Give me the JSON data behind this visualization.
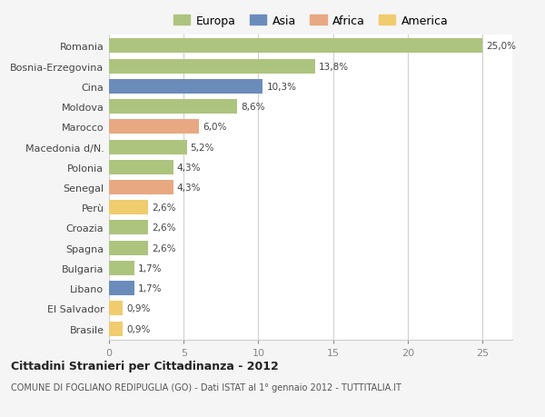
{
  "categories": [
    "Romania",
    "Bosnia-Erzegovina",
    "Cina",
    "Moldova",
    "Marocco",
    "Macedonia d/N.",
    "Polonia",
    "Senegal",
    "Perù",
    "Croazia",
    "Spagna",
    "Bulgaria",
    "Libano",
    "El Salvador",
    "Brasile"
  ],
  "values": [
    25.0,
    13.8,
    10.3,
    8.6,
    6.0,
    5.2,
    4.3,
    4.3,
    2.6,
    2.6,
    2.6,
    1.7,
    1.7,
    0.9,
    0.9
  ],
  "labels": [
    "25,0%",
    "13,8%",
    "10,3%",
    "8,6%",
    "6,0%",
    "5,2%",
    "4,3%",
    "4,3%",
    "2,6%",
    "2,6%",
    "2,6%",
    "1,7%",
    "1,7%",
    "0,9%",
    "0,9%"
  ],
  "colors": [
    "#adc47e",
    "#adc47e",
    "#6b8cba",
    "#adc47e",
    "#e8a882",
    "#adc47e",
    "#adc47e",
    "#e8a882",
    "#f0cc6e",
    "#adc47e",
    "#adc47e",
    "#adc47e",
    "#6b8cba",
    "#f0cc6e",
    "#f0cc6e"
  ],
  "legend": {
    "Europa": "#adc47e",
    "Asia": "#6b8cba",
    "Africa": "#e8a882",
    "America": "#f0cc6e"
  },
  "title_bold": "Cittadini Stranieri per Cittadinanza - 2012",
  "subtitle": "COMUNE DI FOGLIANO REDIPUGLIA (GO) - Dati ISTAT al 1° gennaio 2012 - TUTTITALIA.IT",
  "xlim": [
    0,
    27
  ],
  "xticks": [
    0,
    5,
    10,
    15,
    20,
    25
  ],
  "bg_color": "#f5f5f5",
  "bar_bg": "#ffffff",
  "grid_color": "#d0d0d0"
}
